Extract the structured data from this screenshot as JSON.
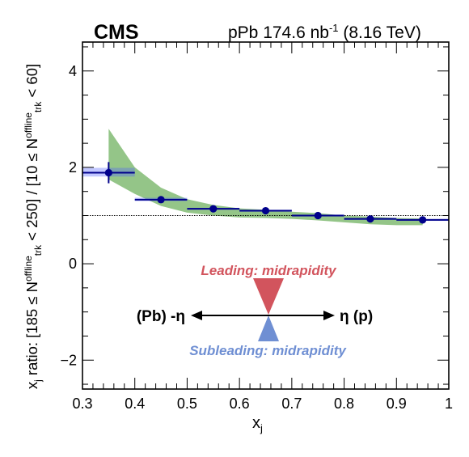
{
  "header": {
    "experiment": "CMS",
    "dataset": "pPb 174.6 nb",
    "lumi_exponent": "-1",
    "energy": "(8.16 TeV)"
  },
  "axes": {
    "xlabel_main": "x",
    "xlabel_sub": "j",
    "ylabel_parts": [
      "x",
      "j",
      " ratio: [185 ≤ N",
      "offline",
      "trk",
      " < 250] / [10 ≤ N",
      "offline",
      "trk",
      " < 60]"
    ]
  },
  "annotations": {
    "leading": "Leading: midrapidity",
    "subleading": "Subleading: midrapidity",
    "left_label": "(Pb) -η",
    "right_label": "η (p)",
    "leading_color": "#d2545d",
    "subleading_color": "#6f8fd3"
  },
  "chart_data": {
    "type": "scatter",
    "xlim": [
      0.3,
      1.0
    ],
    "ylim": [
      -2.6,
      4.6
    ],
    "x_ticks": [
      "0.3",
      "0.4",
      "0.5",
      "0.6",
      "0.7",
      "0.8",
      "0.9",
      "1"
    ],
    "y_ticks": [
      "−2",
      "0",
      "2",
      "4"
    ],
    "reference_line": 1.0,
    "series": [
      {
        "marker": "circle",
        "color": "#00008b",
        "x": [
          0.35,
          0.45,
          0.55,
          0.65,
          0.75,
          0.85,
          0.95
        ],
        "y": [
          1.89,
          1.33,
          1.14,
          1.1,
          1.0,
          0.93,
          0.91
        ],
        "x_err": [
          0.05,
          0.05,
          0.05,
          0.05,
          0.05,
          0.05,
          0.05
        ],
        "y_err": [
          0.22,
          0.03,
          0.02,
          0.02,
          0.02,
          0.02,
          0.02
        ],
        "sys_band": [
          [
            1.81,
            1.99
          ],
          [
            1.3,
            1.37
          ],
          [
            1.12,
            1.16
          ],
          [
            1.08,
            1.12
          ],
          [
            0.98,
            1.02
          ],
          [
            0.91,
            0.95
          ],
          [
            0.89,
            0.93
          ]
        ],
        "sys_band_color": "#5060ff"
      }
    ],
    "model_band": {
      "color": "#4c9e39",
      "x": [
        0.35,
        0.4,
        0.45,
        0.5,
        0.55,
        0.6,
        0.65,
        0.7,
        0.75,
        0.8,
        0.85,
        0.9,
        0.95
      ],
      "low": [
        1.75,
        1.45,
        1.2,
        1.06,
        1.0,
        0.96,
        0.95,
        0.93,
        0.9,
        0.86,
        0.82,
        0.8,
        0.8
      ],
      "high": [
        2.8,
        2.0,
        1.58,
        1.34,
        1.22,
        1.15,
        1.12,
        1.08,
        1.05,
        1.0,
        0.98,
        0.95,
        0.94
      ]
    }
  }
}
